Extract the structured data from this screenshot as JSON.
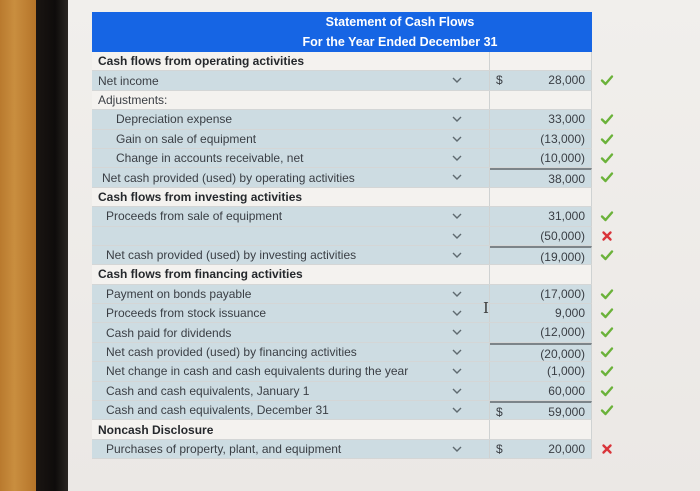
{
  "header": {
    "title": "Statement of Cash Flows",
    "subtitle": "For the Year Ended December 31"
  },
  "colors": {
    "header_bg": "#1665e4",
    "row_blue": "#cddce2",
    "check": "#6bb23a",
    "cross": "#d9343a"
  },
  "rows": [
    {
      "label": "Cash flows from operating activities",
      "style": "section",
      "amount": "",
      "dollar": "",
      "mark": "",
      "dropdown": false
    },
    {
      "label": "Net income",
      "style": "line",
      "amount": "28,000",
      "dollar": "$",
      "mark": "check",
      "dropdown": true
    },
    {
      "label": "Adjustments:",
      "style": "plain",
      "amount": "",
      "dollar": "",
      "mark": "",
      "dropdown": false
    },
    {
      "label": "Depreciation expense",
      "style": "indent",
      "amount": "33,000",
      "dollar": "",
      "mark": "check",
      "dropdown": true
    },
    {
      "label": "Gain on sale of equipment",
      "style": "indent",
      "amount": "(13,000)",
      "dollar": "",
      "mark": "check",
      "dropdown": true
    },
    {
      "label": "Change in accounts receivable, net",
      "style": "indent",
      "amount": "(10,000)",
      "dollar": "",
      "mark": "check",
      "dropdown": true
    },
    {
      "label": "Net cash provided (used) by operating activities",
      "style": "line",
      "amount": "38,000",
      "dollar": "",
      "mark": "check",
      "dropdown": true,
      "subtotal": true
    },
    {
      "label": "Cash flows from investing activities",
      "style": "section",
      "amount": "",
      "dollar": "",
      "mark": "",
      "dropdown": false
    },
    {
      "label": "Proceeds from sale of equipment",
      "style": "line",
      "amount": "31,000",
      "dollar": "",
      "mark": "check",
      "dropdown": true
    },
    {
      "label": "",
      "style": "line",
      "amount": "(50,000)",
      "dollar": "",
      "mark": "cross",
      "dropdown": true
    },
    {
      "label": "Net cash provided (used) by investing activities",
      "style": "line",
      "amount": "(19,000)",
      "dollar": "",
      "mark": "check",
      "dropdown": true,
      "subtotal": true
    },
    {
      "label": "Cash flows from financing activities",
      "style": "section",
      "amount": "",
      "dollar": "",
      "mark": "",
      "dropdown": false
    },
    {
      "label": "Payment on bonds payable",
      "style": "line",
      "amount": "(17,000)",
      "dollar": "",
      "mark": "check",
      "dropdown": true
    },
    {
      "label": "Proceeds from stock issuance",
      "style": "line",
      "amount": "9,000",
      "dollar": "",
      "mark": "check",
      "dropdown": true
    },
    {
      "label": "Cash paid for dividends",
      "style": "line",
      "amount": "(12,000)",
      "dollar": "",
      "mark": "check",
      "dropdown": true
    },
    {
      "label": "Net cash provided (used) by financing activities",
      "style": "line",
      "amount": "(20,000)",
      "dollar": "",
      "mark": "check",
      "dropdown": true,
      "subtotal": true
    },
    {
      "label": "Net change in cash and cash equivalents during the year",
      "style": "line",
      "amount": "(1,000)",
      "dollar": "",
      "mark": "check",
      "dropdown": true
    },
    {
      "label": "Cash and cash equivalents, January 1",
      "style": "line",
      "amount": "60,000",
      "dollar": "",
      "mark": "check",
      "dropdown": true
    },
    {
      "label": "Cash and cash equivalents, December 31",
      "style": "line",
      "amount": "59,000",
      "dollar": "$",
      "mark": "check",
      "dropdown": true,
      "subtotal": true
    },
    {
      "label": "Noncash Disclosure",
      "style": "section",
      "amount": "",
      "dollar": "",
      "mark": "",
      "dropdown": false
    },
    {
      "label": "Purchases of property, plant, and equipment",
      "style": "line",
      "amount": "20,000",
      "dollar": "$",
      "mark": "cross",
      "dropdown": true
    }
  ]
}
